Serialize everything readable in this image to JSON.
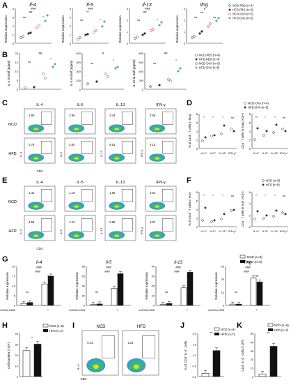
{
  "panels": {
    "A": {
      "letter": "A",
      "ylabel": "Relative expression",
      "charts": [
        {
          "title": "Il-4",
          "ticks": [
            "0",
            "1",
            "2",
            "3",
            "4"
          ],
          "sig_top": "###",
          "sig_mid": "##",
          "sig_pair": [
            "ns",
            "*"
          ]
        },
        {
          "title": "Il-5",
          "ticks": [
            "0",
            "1",
            "2",
            "3",
            "4"
          ],
          "sig_top": "###",
          "sig_mid": "**",
          "sig_pair": [
            "ns",
            "*"
          ]
        },
        {
          "title": "Il-13",
          "ticks": [
            "0",
            "1",
            "2",
            "3"
          ],
          "sig_top": "###",
          "sig_mid": "##",
          "sig_pair": [
            "ns",
            "*"
          ]
        },
        {
          "title": "Ifng",
          "ticks": [
            "0",
            "1",
            "2",
            "3"
          ],
          "sig_top": "#",
          "sig_mid": "ns",
          "sig_pair": [
            "ns",
            "ns"
          ]
        }
      ],
      "legend": [
        "NCD-PBS (n=4)",
        "HFD-PBS (n=4)",
        "NCD-OVA (n=5)",
        "HFD-OVA (n=5)"
      ]
    },
    "B": {
      "letter": "B",
      "charts": [
        {
          "ylabel": "IL-4 in Balf (pg/ml)",
          "ticks": [
            "0",
            "5",
            "10",
            "15",
            "20"
          ],
          "sig_top": "##",
          "sig_pair": [
            "ns",
            "*"
          ]
        },
        {
          "ylabel": "IL-5 in Balf (ng/ml)",
          "ticks": [
            "0",
            "100",
            "200",
            "300",
            "400"
          ],
          "sig_top": "#",
          "sig_pair": [
            "ns",
            "*"
          ]
        },
        {
          "ylabel": "IL-13 in Balf (pg/ml)",
          "ticks": [
            "0",
            "200",
            "400",
            "600",
            "800"
          ],
          "sig_top": "##",
          "sig_pair": [
            "ns",
            "*"
          ]
        }
      ],
      "legend": [
        "NCD-PBS (n=4)",
        "HFD-PBS (n=4)",
        "NCD-OVA (n=5)",
        "HFD-OVA (n=5)"
      ]
    },
    "C": {
      "letter": "C",
      "columns": [
        "IL-4",
        "IL-5",
        "IL-13",
        "IFN-γ"
      ],
      "rows": [
        {
          "label": "NCD",
          "values": [
            "1.60",
            "2.96",
            "3.44",
            "4.65"
          ]
        },
        {
          "label": "HFD",
          "values": [
            "2.75",
            "2.60",
            "5.61",
            "4.15"
          ]
        }
      ],
      "xaxis": "CD4",
      "yaxes": [
        "IL-4",
        "IL-5",
        "IL-13",
        "IFN-γ"
      ]
    },
    "D": {
      "letter": "D",
      "legend": [
        "NCD-OVA (n=4)",
        "HFD-OVA (n=5)"
      ],
      "left": {
        "ylabel": "% of CD4⁺ T cells in lung",
        "ticks": [
          "0",
          "2",
          "4",
          "6",
          "8"
        ],
        "cats": [
          "IL-4⁺",
          "IL-5⁺",
          "IL-13⁺",
          "IFN-γ⁺"
        ],
        "sig": [
          "*",
          "*",
          "*",
          "ns"
        ]
      },
      "right": {
        "ylabel": "CD4⁺ T cells in lung (×10⁴)",
        "ticks": [
          "0",
          "2",
          "4",
          "6",
          "8"
        ],
        "cats": [
          "IL-4⁺",
          "IL-5⁺",
          "IL-13⁺",
          "IFN-γ⁺"
        ],
        "sig": [
          "**",
          "*",
          "*",
          "ns"
        ]
      }
    },
    "E": {
      "letter": "E",
      "columns": [
        "IL-4",
        "IL-5",
        "IL-13",
        "IFN-γ"
      ],
      "rows": [
        {
          "label": "NCD",
          "values": [
            "1.42",
            "1.19",
            "1.69",
            "3.64"
          ]
        },
        {
          "label": "HFD",
          "values": [
            "4.56",
            "1.23",
            "2.85",
            "3.87"
          ]
        }
      ],
      "xaxis": "CD4",
      "yaxes": [
        "IL-4",
        "IL-5",
        "IL-13",
        "IFN-γ"
      ]
    },
    "F": {
      "letter": "F",
      "legend": [
        "NCD (n=8)",
        "HFD (n=8)"
      ],
      "left": {
        "ylabel": "% of CD4⁺ T cells in eLN",
        "ticks": [
          "0",
          "2",
          "4",
          "6",
          "8"
        ],
        "cats": [
          "IL-4⁺",
          "IL-5⁺",
          "IL-13⁺",
          "IFN-γ⁺"
        ],
        "sig": [
          "*",
          "*",
          "*",
          "ns"
        ]
      },
      "right": {
        "ylabel": "CD4⁺ T cells in eLN (×10⁴)",
        "ticks": [
          "0",
          "2",
          "4",
          "6"
        ],
        "cats": [
          "IL-4⁺",
          "IL-5⁺",
          "IL-13⁺",
          "IFN-γ⁺"
        ],
        "sig": [
          "*",
          "*",
          "*",
          "ns"
        ]
      }
    },
    "G": {
      "letter": "G",
      "ylabel": "Relative expression",
      "legend": [
        "NCD (n=8)",
        "HFD (n=8)"
      ],
      "charts": [
        {
          "title": "Il-4",
          "ticks": [
            "0",
            "5",
            "10",
            "15",
            "20"
          ],
          "sig_top": "###",
          "sig_mid": "###",
          "sig_pair": [
            "ns",
            "*"
          ]
        },
        {
          "title": "Il-5",
          "ticks": [
            "0",
            "20",
            "40",
            "60",
            "80"
          ],
          "sig_top": "###",
          "sig_mid": "###",
          "sig_pair": [
            "ns",
            "*"
          ]
        },
        {
          "title": "Il-13",
          "ticks": [
            "0",
            "10",
            "20",
            "30",
            "40"
          ],
          "sig_top": "###",
          "sig_mid": "###",
          "sig_pair": [
            "ns",
            "*"
          ]
        },
        {
          "title": "Ifng",
          "ticks": [
            "0",
            "10",
            "20",
            "30"
          ],
          "sig_top": "###",
          "sig_mid": "###",
          "sig_pair": [
            "ns",
            "ns"
          ]
        }
      ],
      "xlabels": [
        "α-CD3/α-CD28",
        "-",
        "+"
      ]
    },
    "H": {
      "letter": "H",
      "ylabel": "Cell number (×10⁵)",
      "ticks": [
        "0",
        "10",
        "20",
        "30",
        "40"
      ],
      "legend": [
        "NCD (n=6)",
        "HFD (n=7)"
      ],
      "sig": "*"
    },
    "I": {
      "letter": "I",
      "columns": [
        "NCD",
        "HFD"
      ],
      "values": [
        "0.43",
        "1.23"
      ],
      "xaxis": "CD4",
      "yaxis": "IL-4"
    },
    "J": {
      "letter": "J",
      "ylabel": "% of CD4⁺IL-4⁺ cells",
      "ticks": [
        "0.0",
        "0.5",
        "1.0",
        "1.5",
        "2.0"
      ],
      "legend": [
        "NCD (n=6)",
        "HFD (n=7)"
      ],
      "sig": "**"
    },
    "K": {
      "letter": "K",
      "ylabel": "CD4⁺IL-4⁺ cells (×10³)",
      "ticks": [
        "0",
        "10",
        "20",
        "30",
        "40",
        "50"
      ],
      "legend": [
        "NCD (n=6)",
        "HFD (n=7)"
      ],
      "sig": "**"
    }
  },
  "chart_data": [
    {
      "type": "scatter",
      "panel": "A",
      "title": "Il-4",
      "categories": [
        "NCD-PBS",
        "HFD-PBS",
        "NCD-OVA",
        "HFD-OVA"
      ],
      "values": [
        0.6,
        1.1,
        1.9,
        3.3
      ],
      "ylim": [
        0,
        4
      ]
    },
    {
      "type": "scatter",
      "panel": "A",
      "title": "Il-5",
      "categories": [
        "NCD-PBS",
        "HFD-PBS",
        "NCD-OVA",
        "HFD-OVA"
      ],
      "values": [
        0.5,
        0.9,
        1.3,
        2.5
      ],
      "ylim": [
        0,
        4
      ]
    },
    {
      "type": "scatter",
      "panel": "A",
      "title": "Il-13",
      "categories": [
        "NCD-PBS",
        "HFD-PBS",
        "NCD-OVA",
        "HFD-OVA"
      ],
      "values": [
        0.5,
        0.9,
        1.3,
        2.3
      ],
      "ylim": [
        0,
        3
      ]
    },
    {
      "type": "scatter",
      "panel": "A",
      "title": "Ifng",
      "categories": [
        "NCD-PBS",
        "HFD-PBS",
        "NCD-OVA",
        "HFD-OVA"
      ],
      "values": [
        0.5,
        1.0,
        1.8,
        2.1
      ],
      "ylim": [
        0,
        3
      ]
    },
    {
      "type": "scatter",
      "panel": "B",
      "categories": [
        "NCD-PBS",
        "HFD-PBS",
        "NCD-OVA",
        "HFD-OVA"
      ],
      "values": [
        0.8,
        1.2,
        8.5,
        12.5
      ],
      "ylim": [
        0,
        20
      ]
    },
    {
      "type": "scatter",
      "panel": "B",
      "categories": [
        "NCD-PBS",
        "HFD-PBS",
        "NCD-OVA",
        "HFD-OVA"
      ],
      "values": [
        60,
        80,
        160,
        240
      ],
      "ylim": [
        0,
        400
      ]
    },
    {
      "type": "scatter",
      "panel": "B",
      "categories": [
        "NCD-PBS",
        "HFD-PBS",
        "NCD-OVA",
        "HFD-OVA"
      ],
      "values": [
        90,
        120,
        230,
        420
      ],
      "ylim": [
        0,
        800
      ]
    },
    {
      "type": "scatter",
      "panel": "D",
      "categories": [
        "IL-4⁺",
        "IL-5⁺",
        "IL-13⁺",
        "IFN-γ⁺"
      ],
      "series": [
        {
          "name": "NCD-OVA (n=4)",
          "values": [
            1.6,
            2.8,
            3.4,
            4.5
          ]
        },
        {
          "name": "HFD-OVA (n=5)",
          "values": [
            2.6,
            3.0,
            5.4,
            4.0
          ]
        }
      ],
      "ylim": [
        0,
        8
      ]
    },
    {
      "type": "scatter",
      "panel": "D",
      "categories": [
        "IL-4⁺",
        "IL-5⁺",
        "IL-13⁺",
        "IFN-γ⁺"
      ],
      "series": [
        {
          "name": "NCD-OVA (n=4)",
          "values": [
            2.0,
            3.0,
            3.6,
            4.5
          ]
        },
        {
          "name": "HFD-OVA (n=5)",
          "values": [
            4.6,
            4.0,
            5.4,
            4.0
          ]
        }
      ],
      "ylim": [
        0,
        8
      ]
    },
    {
      "type": "scatter",
      "panel": "F",
      "categories": [
        "IL-4⁺",
        "IL-5⁺",
        "IL-13⁺",
        "IFN-γ⁺"
      ],
      "series": [
        {
          "name": "NCD (n=8)",
          "values": [
            1.5,
            1.2,
            1.7,
            3.6
          ]
        },
        {
          "name": "HFD (n=8)",
          "values": [
            4.2,
            1.5,
            2.8,
            3.8
          ]
        }
      ],
      "ylim": [
        0,
        8
      ]
    },
    {
      "type": "scatter",
      "panel": "F",
      "categories": [
        "IL-4⁺",
        "IL-5⁺",
        "IL-13⁺",
        "IFN-γ⁺"
      ],
      "series": [
        {
          "name": "NCD (n=8)",
          "values": [
            1.4,
            1.4,
            1.8,
            2.4
          ]
        },
        {
          "name": "HFD (n=8)",
          "values": [
            2.6,
            2.0,
            2.8,
            2.2
          ]
        }
      ],
      "ylim": [
        0,
        6
      ]
    },
    {
      "type": "bar",
      "panel": "G",
      "title": "Il-4",
      "categories": [
        "-",
        "+"
      ],
      "series": [
        {
          "name": "NCD (n=8)",
          "values": [
            1,
            11
          ]
        },
        {
          "name": "HFD (n=8)",
          "values": [
            1.5,
            15
          ]
        }
      ],
      "ylim": [
        0,
        20
      ]
    },
    {
      "type": "bar",
      "panel": "G",
      "title": "Il-5",
      "categories": [
        "-",
        "+"
      ],
      "series": [
        {
          "name": "NCD (n=8)",
          "values": [
            2,
            35
          ]
        },
        {
          "name": "HFD (n=8)",
          "values": [
            3,
            65
          ]
        }
      ],
      "ylim": [
        0,
        80
      ]
    },
    {
      "type": "bar",
      "panel": "G",
      "title": "Il-13",
      "categories": [
        "-",
        "+"
      ],
      "series": [
        {
          "name": "NCD (n=8)",
          "values": [
            1,
            18
          ]
        },
        {
          "name": "HFD (n=8)",
          "values": [
            2,
            34
          ]
        }
      ],
      "ylim": [
        0,
        40
      ]
    },
    {
      "type": "bar",
      "panel": "G",
      "title": "Ifng",
      "categories": [
        "-",
        "+"
      ],
      "series": [
        {
          "name": "NCD (n=8)",
          "values": [
            1,
            21
          ]
        },
        {
          "name": "HFD (n=8)",
          "values": [
            1,
            18
          ]
        }
      ],
      "ylim": [
        0,
        30
      ]
    },
    {
      "type": "bar",
      "panel": "H",
      "categories": [
        "NCD (n=6)",
        "HFD (n=7)"
      ],
      "values": [
        24,
        30
      ],
      "ylim": [
        0,
        40
      ]
    },
    {
      "type": "bar",
      "panel": "J",
      "categories": [
        "NCD (n=6)",
        "HFD (n=7)"
      ],
      "values": [
        0.15,
        1.2
      ],
      "ylim": [
        0,
        2.0
      ]
    },
    {
      "type": "bar",
      "panel": "K",
      "categories": [
        "NCD (n=6)",
        "HFD (n=7)"
      ],
      "values": [
        3,
        35
      ],
      "ylim": [
        0,
        50
      ]
    }
  ]
}
